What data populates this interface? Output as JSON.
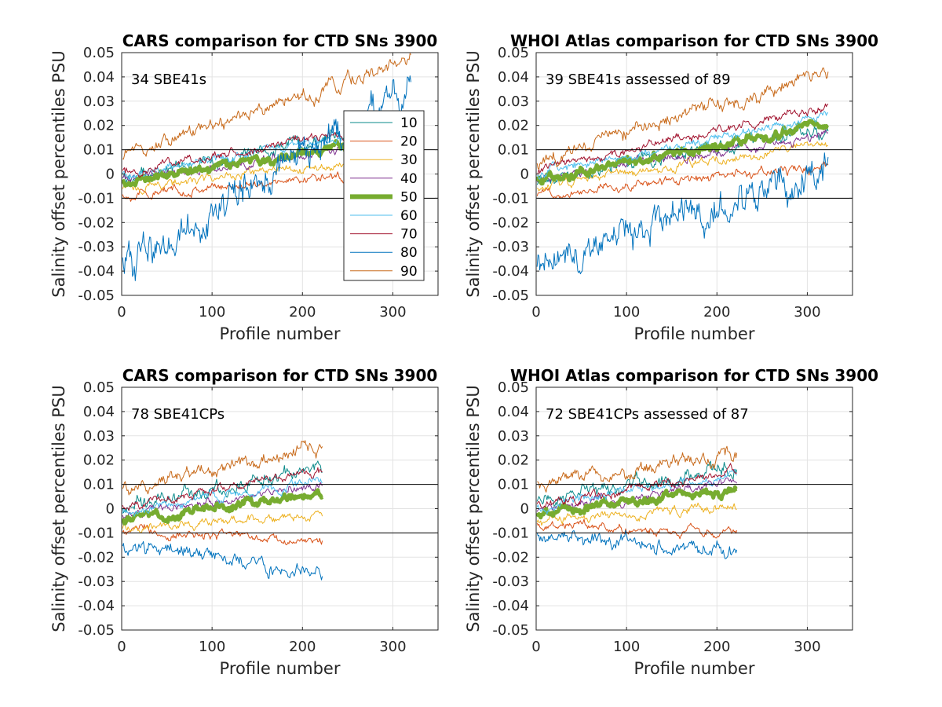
{
  "figure": {
    "background": "#ffffff",
    "legend_labels": [
      "10",
      "20",
      "30",
      "40",
      "50",
      "60",
      "70",
      "80",
      "90"
    ],
    "legend_colors": [
      "#0a8a8a",
      "#d95319",
      "#edb120",
      "#7e2f8e",
      "#77ac30",
      "#4dbeee",
      "#a2142f",
      "#0072bd",
      "#c86a1a"
    ]
  },
  "chart_data": [
    {
      "type": "line",
      "title": "CARS comparison for CTD SNs 3900",
      "xlabel": "Profile number",
      "ylabel": "Salinity offset percentiles PSU",
      "annotation": "34 SBE41s",
      "xlim": [
        0,
        350
      ],
      "ylim": [
        -0.05,
        0.05
      ],
      "xticks": [
        "0",
        "100",
        "200",
        "300"
      ],
      "yticks": [
        "-0.05",
        "-0.04",
        "-0.03",
        "-0.02",
        "-0.01",
        "0",
        "0.01",
        "0.02",
        "0.03",
        "0.04",
        "0.05"
      ],
      "reference_lines": [
        0.01,
        -0.01
      ],
      "grid": true,
      "legend": "right-center",
      "n_profiles": 320,
      "series": [
        {
          "name": "10",
          "color": "#0a8a8a",
          "start": -0.002,
          "end": 0.022
        },
        {
          "name": "20",
          "color": "#d95319",
          "start": -0.009,
          "end": 0.002
        },
        {
          "name": "30",
          "color": "#edb120",
          "start": -0.006,
          "end": 0.007
        },
        {
          "name": "40",
          "color": "#7e2f8e",
          "start": -0.002,
          "end": 0.013
        },
        {
          "name": "50",
          "color": "#77ac30",
          "start": -0.003,
          "end": 0.015
        },
        {
          "name": "60",
          "color": "#4dbeee",
          "start": 0.0,
          "end": 0.019
        },
        {
          "name": "70",
          "color": "#a2142f",
          "start": 0.001,
          "end": 0.021
        },
        {
          "name": "80",
          "color": "#0072bd",
          "start": -0.038,
          "end": 0.035
        },
        {
          "name": "90",
          "color": "#c86a1a",
          "start": 0.006,
          "end": 0.047
        }
      ]
    },
    {
      "type": "line",
      "title": "WHOI Atlas comparison for CTD SNs 3900",
      "xlabel": "Profile number",
      "ylabel": "Salinity offset percentiles PSU",
      "annotation": "39 SBE41s assessed of 89",
      "xlim": [
        0,
        350
      ],
      "ylim": [
        -0.05,
        0.05
      ],
      "xticks": [
        "0",
        "100",
        "200",
        "300"
      ],
      "yticks": [
        "-0.05",
        "-0.04",
        "-0.03",
        "-0.02",
        "-0.01",
        "0",
        "0.01",
        "0.02",
        "0.03",
        "0.04",
        "0.05"
      ],
      "reference_lines": [
        0.01,
        -0.01
      ],
      "grid": true,
      "n_profiles": 323,
      "series": [
        {
          "name": "10",
          "color": "#0a8a8a",
          "start": -0.002,
          "end": 0.018
        },
        {
          "name": "20",
          "color": "#d95319",
          "start": -0.008,
          "end": 0.003
        },
        {
          "name": "30",
          "color": "#edb120",
          "start": -0.005,
          "end": 0.012
        },
        {
          "name": "40",
          "color": "#7e2f8e",
          "start": -0.002,
          "end": 0.016
        },
        {
          "name": "50",
          "color": "#77ac30",
          "start": -0.002,
          "end": 0.02
        },
        {
          "name": "60",
          "color": "#4dbeee",
          "start": 0.0,
          "end": 0.024
        },
        {
          "name": "70",
          "color": "#a2142f",
          "start": 0.001,
          "end": 0.028
        },
        {
          "name": "80",
          "color": "#0072bd",
          "start": -0.035,
          "end": 0.001
        },
        {
          "name": "90",
          "color": "#c86a1a",
          "start": 0.005,
          "end": 0.042
        }
      ]
    },
    {
      "type": "line",
      "title": "CARS comparison for CTD SNs 3900",
      "xlabel": "Profile number",
      "ylabel": "Salinity offset percentiles PSU",
      "annotation": "78 SBE41CPs",
      "xlim": [
        0,
        350
      ],
      "ylim": [
        -0.05,
        0.05
      ],
      "xticks": [
        "0",
        "100",
        "200",
        "300"
      ],
      "yticks": [
        "-0.05",
        "-0.04",
        "-0.03",
        "-0.02",
        "-0.01",
        "0",
        "0.01",
        "0.02",
        "0.03",
        "0.04",
        "0.05"
      ],
      "reference_lines": [
        0.01,
        -0.01
      ],
      "grid": true,
      "n_profiles": 222,
      "series": [
        {
          "name": "10",
          "color": "#0a8a8a",
          "start": 0.0,
          "end": 0.017
        },
        {
          "name": "20",
          "color": "#d95319",
          "start": -0.009,
          "end": -0.014
        },
        {
          "name": "30",
          "color": "#edb120",
          "start": -0.008,
          "end": -0.002
        },
        {
          "name": "40",
          "color": "#7e2f8e",
          "start": -0.003,
          "end": 0.01
        },
        {
          "name": "50",
          "color": "#77ac30",
          "start": -0.005,
          "end": 0.006
        },
        {
          "name": "60",
          "color": "#4dbeee",
          "start": -0.002,
          "end": 0.012
        },
        {
          "name": "70",
          "color": "#a2142f",
          "start": 0.001,
          "end": 0.015
        },
        {
          "name": "80",
          "color": "#0072bd",
          "start": -0.015,
          "end": -0.027
        },
        {
          "name": "90",
          "color": "#c86a1a",
          "start": 0.008,
          "end": 0.025
        }
      ]
    },
    {
      "type": "line",
      "title": "WHOI Atlas comparison for CTD SNs 3900",
      "xlabel": "Profile number",
      "ylabel": "Salinity offset percentiles PSU",
      "annotation": "72 SBE41CPs assessed of 87",
      "xlim": [
        0,
        350
      ],
      "ylim": [
        -0.05,
        0.05
      ],
      "xticks": [
        "0",
        "100",
        "200",
        "300"
      ],
      "yticks": [
        "-0.05",
        "-0.04",
        "-0.03",
        "-0.02",
        "-0.01",
        "0",
        "0.01",
        "0.02",
        "0.03",
        "0.04",
        "0.05"
      ],
      "reference_lines": [
        0.01,
        -0.01
      ],
      "grid": true,
      "n_profiles": 222,
      "series": [
        {
          "name": "10",
          "color": "#0a8a8a",
          "start": 0.002,
          "end": 0.018
        },
        {
          "name": "20",
          "color": "#d95319",
          "start": -0.007,
          "end": -0.01
        },
        {
          "name": "30",
          "color": "#edb120",
          "start": -0.006,
          "end": 0.002
        },
        {
          "name": "40",
          "color": "#7e2f8e",
          "start": -0.002,
          "end": 0.012
        },
        {
          "name": "50",
          "color": "#77ac30",
          "start": -0.003,
          "end": 0.009
        },
        {
          "name": "60",
          "color": "#4dbeee",
          "start": 0.0,
          "end": 0.015
        },
        {
          "name": "70",
          "color": "#a2142f",
          "start": 0.001,
          "end": 0.016
        },
        {
          "name": "80",
          "color": "#0072bd",
          "start": -0.012,
          "end": -0.016
        },
        {
          "name": "90",
          "color": "#c86a1a",
          "start": 0.01,
          "end": 0.022
        }
      ]
    }
  ]
}
